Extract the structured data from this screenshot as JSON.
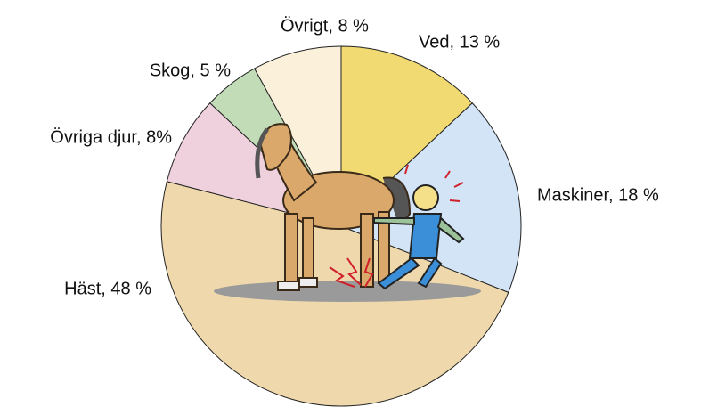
{
  "chart_data": {
    "type": "pie",
    "values": [
      13,
      18,
      48,
      8,
      5,
      8
    ],
    "value_labels": [
      "Ved, 13 %",
      "Maskiner, 18 %",
      "Häst, 48 %",
      "Övriga djur, 8%",
      "Skog, 5 %",
      "Övrigt, 8 %"
    ],
    "colors": [
      "#f1da72",
      "#d2e4f6",
      "#efd9ac",
      "#efd1dd",
      "#c1dcb6",
      "#fbf1db"
    ]
  }
}
